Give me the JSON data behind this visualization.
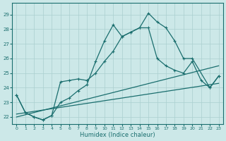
{
  "xlabel": "Humidex (Indice chaleur)",
  "bg_color": "#cce8e8",
  "grid_color": "#aacfcf",
  "line_color": "#1a6e6e",
  "xlim": [
    -0.5,
    23.5
  ],
  "ylim": [
    21.5,
    29.8
  ],
  "yticks": [
    22,
    23,
    24,
    25,
    26,
    27,
    28,
    29
  ],
  "xticks": [
    0,
    1,
    2,
    3,
    4,
    5,
    6,
    7,
    8,
    9,
    10,
    11,
    12,
    13,
    14,
    15,
    16,
    17,
    18,
    19,
    20,
    21,
    22,
    23
  ],
  "curve_main": {
    "x": [
      0,
      1,
      2,
      3,
      4,
      5,
      6,
      7,
      8,
      9,
      10,
      11,
      12,
      13,
      14,
      15,
      16,
      17,
      18,
      19,
      20,
      22,
      23
    ],
    "y": [
      23.5,
      22.3,
      22.0,
      21.8,
      22.1,
      23.0,
      23.3,
      23.8,
      24.2,
      25.8,
      27.2,
      28.3,
      27.5,
      27.8,
      28.1,
      29.1,
      28.5,
      28.1,
      27.2,
      26.0,
      26.0,
      24.0,
      24.8
    ]
  },
  "curve_mid": {
    "x": [
      0,
      1,
      2,
      3,
      4,
      5,
      6,
      7,
      8,
      9,
      10,
      11,
      12,
      13,
      14,
      15,
      16,
      17,
      18,
      19,
      20,
      21,
      22,
      23
    ],
    "y": [
      23.5,
      22.3,
      22.0,
      21.8,
      22.1,
      24.4,
      24.5,
      24.6,
      24.5,
      25.0,
      25.8,
      26.5,
      27.5,
      27.8,
      28.1,
      28.1,
      26.0,
      25.5,
      25.2,
      25.0,
      25.8,
      24.5,
      24.0,
      24.8
    ]
  },
  "trend1": {
    "x": [
      0,
      23
    ],
    "y": [
      22.0,
      25.5
    ]
  },
  "trend2": {
    "x": [
      0,
      23
    ],
    "y": [
      22.2,
      24.3
    ]
  }
}
